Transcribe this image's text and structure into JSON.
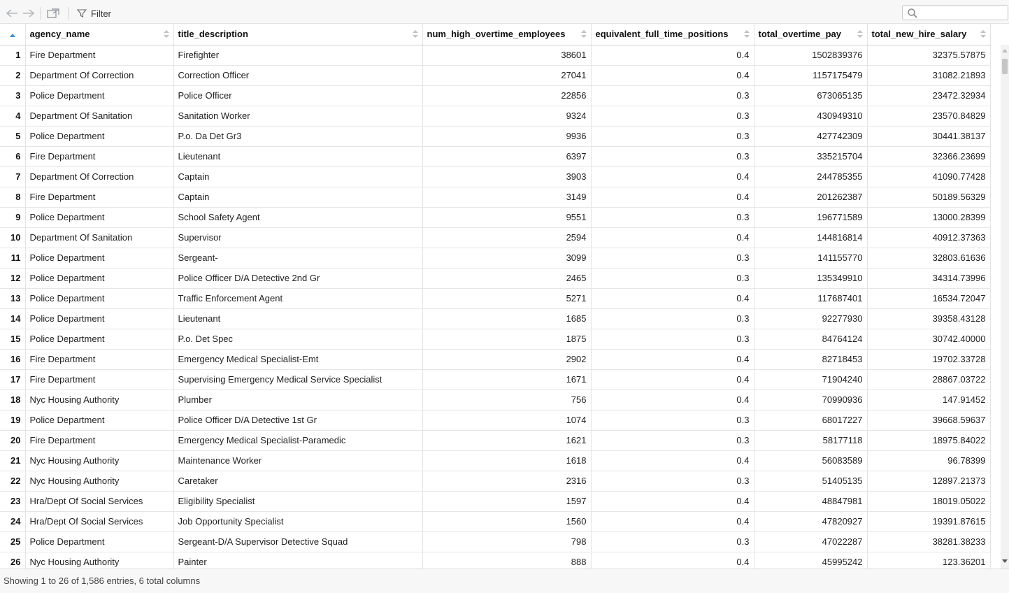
{
  "toolbar": {
    "filter_label": "Filter",
    "search": {
      "value": "",
      "placeholder": ""
    },
    "icons": {
      "back": "arrow-left-icon",
      "forward": "arrow-right-icon",
      "popout": "popout-icon",
      "filter": "funnel-icon",
      "search": "search-icon"
    }
  },
  "table": {
    "columns": [
      "agency_name",
      "title_description",
      "num_high_overtime_employees",
      "equivalent_full_time_positions",
      "total_overtime_pay",
      "total_new_hire_salary"
    ],
    "rows": [
      [
        "1",
        "Fire Department",
        "Firefighter",
        "38601",
        "0.4",
        "1502839376",
        "32375.57875"
      ],
      [
        "2",
        "Department Of Correction",
        "Correction Officer",
        "27041",
        "0.4",
        "1157175479",
        "31082.21893"
      ],
      [
        "3",
        "Police Department",
        "Police Officer",
        "22856",
        "0.3",
        "673065135",
        "23472.32934"
      ],
      [
        "4",
        "Department Of Sanitation",
        "Sanitation Worker",
        "9324",
        "0.3",
        "430949310",
        "23570.84829"
      ],
      [
        "5",
        "Police Department",
        "P.o. Da Det Gr3",
        "9936",
        "0.3",
        "427742309",
        "30441.38137"
      ],
      [
        "6",
        "Fire Department",
        "Lieutenant",
        "6397",
        "0.3",
        "335215704",
        "32366.23699"
      ],
      [
        "7",
        "Department Of Correction",
        "Captain",
        "3903",
        "0.4",
        "244785355",
        "41090.77428"
      ],
      [
        "8",
        "Fire Department",
        "Captain",
        "3149",
        "0.4",
        "201262387",
        "50189.56329"
      ],
      [
        "9",
        "Police Department",
        "School Safety Agent",
        "9551",
        "0.3",
        "196771589",
        "13000.28399"
      ],
      [
        "10",
        "Department Of Sanitation",
        "Supervisor",
        "2594",
        "0.4",
        "144816814",
        "40912.37363"
      ],
      [
        "11",
        "Police Department",
        "Sergeant-",
        "3099",
        "0.3",
        "141155770",
        "32803.61636"
      ],
      [
        "12",
        "Police Department",
        "Police Officer D/A Detective 2nd Gr",
        "2465",
        "0.3",
        "135349910",
        "34314.73996"
      ],
      [
        "13",
        "Police Department",
        "Traffic Enforcement Agent",
        "5271",
        "0.4",
        "117687401",
        "16534.72047"
      ],
      [
        "14",
        "Police Department",
        "Lieutenant",
        "1685",
        "0.3",
        "92277930",
        "39358.43128"
      ],
      [
        "15",
        "Police Department",
        "P.o. Det Spec",
        "1875",
        "0.3",
        "84764124",
        "30742.40000"
      ],
      [
        "16",
        "Fire Department",
        "Emergency Medical Specialist-Emt",
        "2902",
        "0.4",
        "82718453",
        "19702.33728"
      ],
      [
        "17",
        "Fire Department",
        "Supervising Emergency Medical Service Specialist",
        "1671",
        "0.4",
        "71904240",
        "28867.03722"
      ],
      [
        "18",
        "Nyc Housing Authority",
        "Plumber",
        "756",
        "0.4",
        "70990936",
        "147.91452"
      ],
      [
        "19",
        "Police Department",
        "Police Officer D/A Detective 1st Gr",
        "1074",
        "0.3",
        "68017227",
        "39668.59637"
      ],
      [
        "20",
        "Fire Department",
        "Emergency Medical Specialist-Paramedic",
        "1621",
        "0.3",
        "58177118",
        "18975.84022"
      ],
      [
        "21",
        "Nyc Housing Authority",
        "Maintenance Worker",
        "1618",
        "0.4",
        "56083589",
        "96.78399"
      ],
      [
        "22",
        "Nyc Housing Authority",
        "Caretaker",
        "2316",
        "0.3",
        "51405135",
        "12897.21373"
      ],
      [
        "23",
        "Hra/Dept Of Social Services",
        "Eligibility Specialist",
        "1597",
        "0.4",
        "48847981",
        "18019.05022"
      ],
      [
        "24",
        "Hra/Dept Of Social Services",
        "Job Opportunity Specialist",
        "1560",
        "0.4",
        "47820927",
        "19391.87615"
      ],
      [
        "25",
        "Police Department",
        "Sergeant-D/A Supervisor Detective Squad",
        "798",
        "0.3",
        "47022287",
        "38281.38233"
      ],
      [
        "26",
        "Nyc Housing Authority",
        "Painter",
        "888",
        "0.4",
        "45995242",
        "123.36201"
      ]
    ]
  },
  "footer": {
    "status": "Showing 1 to 26 of 1,586 entries, 6 total columns"
  }
}
